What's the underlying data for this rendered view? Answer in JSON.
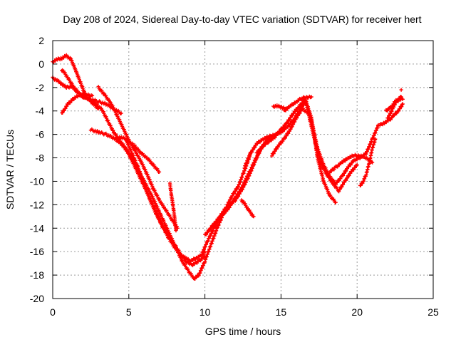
{
  "chart_data": {
    "type": "scatter",
    "title": "Day 208 of 2024, Sidereal Day-to-day VTEC variation (SDTVAR) for receiver hert",
    "xlabel": "GPS time / hours",
    "ylabel": "SDTVAR / TECUs",
    "xlim": [
      0,
      25
    ],
    "ylim": [
      -20,
      2
    ],
    "xticks": [
      0,
      5,
      10,
      15,
      20,
      25
    ],
    "yticks": [
      -20,
      -18,
      -16,
      -14,
      -12,
      -10,
      -8,
      -6,
      -4,
      -2,
      0,
      2
    ],
    "grid": true,
    "marker": "plus",
    "color": "#ff0000",
    "series": [
      {
        "x": [
          0.0,
          0.3,
          0.6,
          0.9,
          1.2,
          1.6,
          2.0,
          2.5,
          3.0,
          3.5,
          4.0,
          4.5
        ],
        "y": [
          -1.2,
          -1.4,
          -1.7,
          -2.0,
          -1.9,
          -2.3,
          -2.8,
          -3.0,
          -3.2,
          -3.4,
          -3.8,
          -4.2
        ]
      },
      {
        "x": [
          0.0,
          0.3,
          0.6,
          0.9,
          1.2,
          1.5,
          1.8,
          2.1,
          2.5,
          3.0
        ],
        "y": [
          0.2,
          0.4,
          0.5,
          0.7,
          0.4,
          -0.5,
          -1.5,
          -2.5,
          -3.2,
          -3.8
        ]
      },
      {
        "x": [
          0.6,
          0.8,
          1.0,
          1.3,
          1.6,
          2.0,
          2.4,
          2.8,
          3.2,
          3.6,
          4.0,
          4.4,
          4.8,
          5.2,
          5.6,
          6.0,
          6.4,
          6.8,
          7.2,
          7.6,
          8.0,
          8.4,
          8.8,
          9.0,
          9.2,
          9.5,
          9.8,
          10.0
        ],
        "y": [
          -0.5,
          -0.8,
          -1.2,
          -1.8,
          -2.4,
          -2.8,
          -3.0,
          -3.4,
          -3.8,
          -4.8,
          -5.8,
          -6.5,
          -7.2,
          -8.2,
          -9.3,
          -10.4,
          -11.5,
          -12.6,
          -13.8,
          -14.8,
          -15.6,
          -16.3,
          -16.6,
          -16.8,
          -16.7,
          -16.5,
          -16.3,
          -16.0
        ]
      },
      {
        "x": [
          0.6,
          0.8,
          1.0,
          1.5,
          2.0,
          2.6
        ],
        "y": [
          -4.2,
          -3.8,
          -3.4,
          -2.8,
          -2.6,
          -2.7
        ]
      },
      {
        "x": [
          2.5,
          3.0,
          3.5,
          4.0,
          4.5,
          5.0,
          5.5,
          6.0,
          6.5,
          7.0,
          7.5,
          8.0,
          8.5,
          9.0,
          9.3,
          9.6,
          10.0,
          10.4,
          10.8,
          11.2,
          11.6,
          12.0,
          12.4,
          12.8,
          13.2,
          13.6,
          14.0,
          14.4
        ],
        "y": [
          -5.6,
          -5.8,
          -6.0,
          -6.3,
          -6.8,
          -7.6,
          -8.8,
          -10.0,
          -11.2,
          -12.6,
          -14.0,
          -15.4,
          -16.8,
          -17.8,
          -18.3,
          -18.0,
          -16.8,
          -15.4,
          -14.0,
          -12.8,
          -12.0,
          -11.6,
          -10.8,
          -9.8,
          -8.6,
          -7.4,
          -6.6,
          -6.2
        ]
      },
      {
        "x": [
          3.0,
          3.4,
          3.8,
          4.2,
          4.6,
          5.0,
          5.4,
          5.8,
          6.2,
          6.6,
          7.0,
          7.4,
          7.8,
          8.2
        ],
        "y": [
          -2.0,
          -2.6,
          -3.3,
          -4.3,
          -5.4,
          -6.5,
          -7.4,
          -8.3,
          -9.4,
          -10.6,
          -11.6,
          -12.4,
          -13.2,
          -14.0
        ]
      },
      {
        "x": [
          4.4,
          4.8,
          5.2,
          5.6,
          6.0,
          6.4,
          6.8,
          7.2,
          7.6,
          8.0,
          8.4,
          8.8,
          9.2,
          9.6,
          10.0
        ],
        "y": [
          -6.2,
          -6.4,
          -7.6,
          -8.8,
          -10.2,
          -11.6,
          -12.8,
          -13.8,
          -14.6,
          -15.4,
          -16.2,
          -16.9,
          -17.1,
          -16.8,
          -16.4
        ]
      },
      {
        "x": [
          4.8,
          5.4,
          5.8,
          6.2,
          6.6,
          7.0
        ],
        "y": [
          -6.4,
          -7.0,
          -7.6,
          -8.0,
          -8.6,
          -9.2
        ]
      },
      {
        "x": [
          7.7,
          7.8,
          7.9,
          8.0,
          8.1
        ],
        "y": [
          -10.2,
          -11.2,
          -12.0,
          -13.0,
          -14.2
        ]
      },
      {
        "x": [
          9.8,
          10.2,
          10.6,
          11.0,
          11.4,
          11.8,
          12.2,
          12.5,
          12.8,
          13.0
        ],
        "y": [
          -16.2,
          -15.0,
          -14.0,
          -13.0,
          -12.2,
          -11.2,
          -10.4,
          -9.4,
          -8.4,
          -7.6
        ]
      },
      {
        "x": [
          10.0,
          10.5,
          11.0,
          11.5,
          12.0,
          12.4,
          12.7,
          13.0,
          13.3,
          13.7
        ],
        "y": [
          -14.6,
          -13.8,
          -13.0,
          -12.4,
          -11.4,
          -10.6,
          -9.8,
          -9.0,
          -8.2,
          -7.2
        ]
      },
      {
        "x": [
          12.4,
          12.6,
          12.8,
          13.0,
          13.2
        ],
        "y": [
          -11.6,
          -11.9,
          -12.3,
          -12.7,
          -13.0
        ]
      },
      {
        "x": [
          12.6,
          13.0,
          13.4,
          13.8,
          14.2,
          14.6,
          15.0,
          15.4,
          15.8,
          16.2,
          16.6,
          17.0,
          17.4,
          17.8,
          18.2,
          18.6,
          19.0,
          19.4,
          19.8,
          20.2,
          20.6,
          21.0,
          21.4
        ],
        "y": [
          -8.8,
          -7.6,
          -6.8,
          -6.4,
          -6.2,
          -6.0,
          -5.8,
          -5.4,
          -4.8,
          -4.0,
          -3.2,
          -4.8,
          -7.2,
          -8.6,
          -9.6,
          -10.2,
          -9.6,
          -8.8,
          -8.2,
          -8.0,
          -7.6,
          -6.4,
          -5.2
        ]
      },
      {
        "x": [
          13.4,
          13.8,
          14.2,
          14.6,
          15.0,
          15.4,
          15.8,
          16.2,
          16.6,
          17.0,
          17.4,
          17.8,
          18.2,
          18.6
        ],
        "y": [
          -7.6,
          -7.0,
          -6.6,
          -6.2,
          -5.6,
          -5.0,
          -4.2,
          -3.6,
          -3.0,
          -4.6,
          -8.0,
          -10.0,
          -11.2,
          -11.8
        ]
      },
      {
        "x": [
          14.4,
          14.8,
          15.2,
          15.6,
          16.0,
          16.4,
          16.8,
          17.2,
          17.6,
          18.0,
          18.4,
          18.8,
          19.2,
          19.6,
          20.0
        ],
        "y": [
          -7.8,
          -7.0,
          -6.4,
          -5.6,
          -4.6,
          -3.8,
          -4.2,
          -6.4,
          -8.4,
          -9.4,
          -10.2,
          -10.8,
          -10.0,
          -9.2,
          -8.6
        ]
      },
      {
        "x": [
          15.2,
          15.6,
          16.0,
          16.4,
          16.8,
          17.0
        ],
        "y": [
          -4.0,
          -3.6,
          -3.2,
          -2.9,
          -2.8,
          -2.8
        ]
      },
      {
        "x": [
          14.5,
          14.8,
          15.1,
          15.3
        ],
        "y": [
          -3.6,
          -3.6,
          -3.7,
          -3.8
        ]
      },
      {
        "x": [
          18.2,
          18.6,
          19.0,
          19.4,
          19.8,
          20.2,
          20.6,
          21.0
        ],
        "y": [
          -9.2,
          -8.8,
          -8.4,
          -8.0,
          -7.8,
          -7.8,
          -8.0,
          -8.4
        ]
      },
      {
        "x": [
          20.2,
          20.4,
          20.6,
          20.8,
          21.0,
          21.2
        ],
        "y": [
          -10.4,
          -10.0,
          -9.4,
          -8.4,
          -7.2,
          -6.4
        ]
      },
      {
        "x": [
          21.5,
          21.8,
          22.1,
          22.4,
          22.7,
          23.0
        ],
        "y": [
          -5.2,
          -5.0,
          -4.8,
          -4.4,
          -4.0,
          -3.4
        ]
      },
      {
        "x": [
          21.9,
          22.1,
          22.3,
          22.5,
          22.7,
          22.9
        ],
        "y": [
          -4.0,
          -3.8,
          -3.6,
          -3.2,
          -3.0,
          -2.8
        ]
      },
      {
        "x": [
          22.0,
          22.2,
          22.4,
          22.6,
          22.8,
          23.0
        ],
        "y": [
          -4.6,
          -4.2,
          -3.6,
          -3.2,
          -3.0,
          -3.0
        ]
      },
      {
        "x": [
          22.9
        ],
        "y": [
          -2.2
        ]
      }
    ]
  }
}
